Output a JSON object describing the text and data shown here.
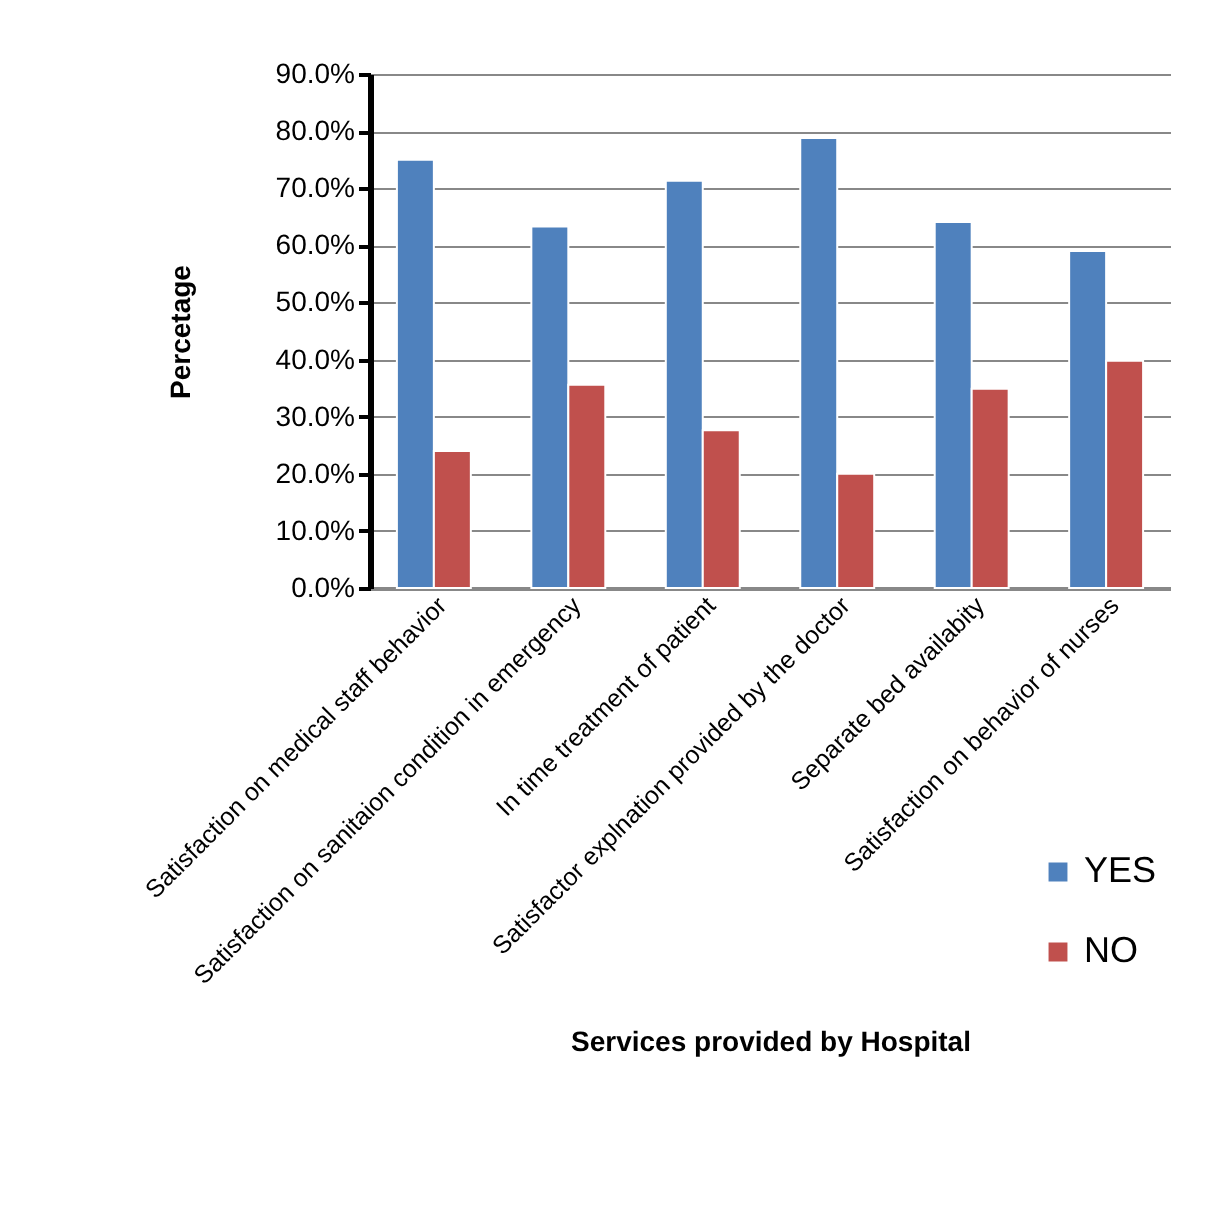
{
  "chart_data": {
    "type": "bar",
    "xlabel": "Services provided by Hospital",
    "ylabel": "Percetage",
    "categories": [
      "Satisfaction on medical staff behavior",
      "Satisfaction on sanitaion condition in emergency",
      "In time treatment of patient",
      "Satisfactor explnation provided by the doctor",
      "Separate bed availabity",
      "Satisfaction on behavior of nurses"
    ],
    "series": [
      {
        "name": "YES",
        "color": "#4f81bd",
        "values": [
          75,
          63.3,
          71.3,
          78.8,
          64.1,
          59
        ]
      },
      {
        "name": "NO",
        "color": "#c0504d",
        "values": [
          24,
          35.6,
          27.6,
          20,
          34.9,
          39.8
        ]
      }
    ],
    "ylim": [
      0,
      90
    ],
    "yticks": [
      {
        "value": 0,
        "label": "0.0%"
      },
      {
        "value": 10,
        "label": "10.0%"
      },
      {
        "value": 20,
        "label": "20.0%"
      },
      {
        "value": 30,
        "label": "30.0%"
      },
      {
        "value": 40,
        "label": "40.0%"
      },
      {
        "value": 50,
        "label": "50.0%"
      },
      {
        "value": 60,
        "label": "60.0%"
      },
      {
        "value": 70,
        "label": "70.0%"
      },
      {
        "value": 80,
        "label": "80.0%"
      },
      {
        "value": 90,
        "label": "90.0%"
      }
    ],
    "grid": "y",
    "legend": "right"
  }
}
